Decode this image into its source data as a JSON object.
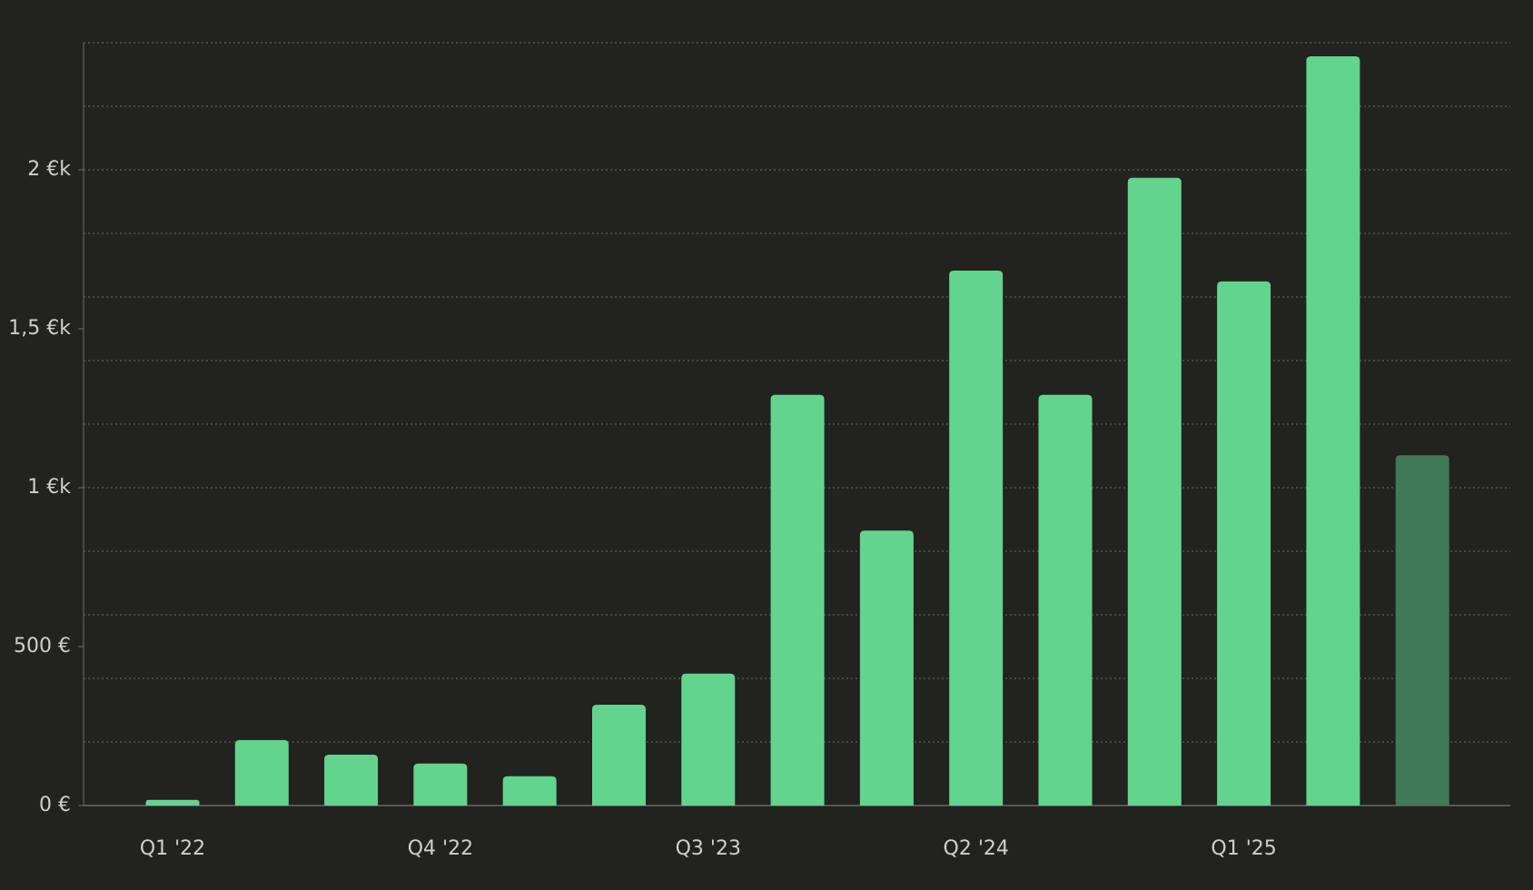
{
  "chart_data": {
    "type": "bar",
    "categories": [
      "Q1 '22",
      null,
      null,
      "Q4 '22",
      null,
      null,
      "Q3 '23",
      null,
      null,
      "Q2 '24",
      null,
      null,
      "Q1 '25",
      null,
      null
    ],
    "values": [
      18,
      206,
      160,
      132,
      92,
      317,
      415,
      1292,
      865,
      1683,
      1292,
      1975,
      1649,
      2357,
      1102
    ],
    "colors": [
      "#63d48e",
      "#63d48e",
      "#63d48e",
      "#63d48e",
      "#63d48e",
      "#63d48e",
      "#63d48e",
      "#63d48e",
      "#63d48e",
      "#63d48e",
      "#63d48e",
      "#63d48e",
      "#63d48e",
      "#63d48e",
      "#417a56"
    ],
    "ylim": [
      0,
      2400
    ],
    "yticks": [
      {
        "value": 0,
        "label": "0 €"
      },
      {
        "value": 500,
        "label": "500 €"
      },
      {
        "value": 1000,
        "label": "1 €k"
      },
      {
        "value": 1500,
        "label": "1,5 €k"
      },
      {
        "value": 2000,
        "label": "2 €k"
      }
    ],
    "minor_yticks": [
      200,
      400,
      600,
      800,
      1000,
      1200,
      1400,
      1600,
      1800,
      2000,
      2200,
      2400
    ],
    "grid": true
  }
}
